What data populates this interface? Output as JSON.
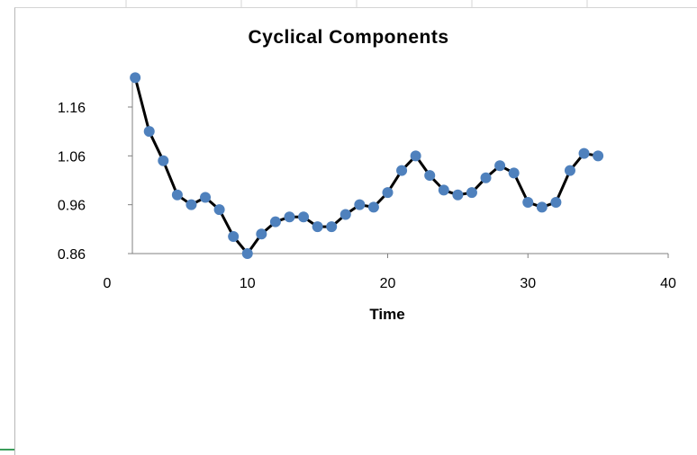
{
  "chart_data": {
    "type": "line",
    "title": "Cyclical Components",
    "xlabel": "Time",
    "ylabel": "",
    "xlim": [
      0,
      40
    ],
    "ylim": [
      0.86,
      1.2
    ],
    "x_ticks": [
      0,
      10,
      20,
      30,
      40
    ],
    "x_tick_labels": [
      "0",
      "10",
      "20",
      "30",
      "40"
    ],
    "y_ticks": [
      0.86,
      0.96,
      1.06,
      1.16
    ],
    "y_tick_labels": [
      "0.86",
      "0.96",
      "1.06",
      "1.16"
    ],
    "grid": false,
    "legend": "none",
    "series": [
      {
        "line_color": "#000000",
        "marker_color": "#4f81bd",
        "x": [
          2,
          3,
          4,
          5,
          6,
          7,
          8,
          9,
          10,
          11,
          12,
          13,
          14,
          15,
          16,
          17,
          18,
          19,
          20,
          21,
          22,
          23,
          24,
          25,
          26,
          27,
          28,
          29,
          30,
          31,
          32,
          33,
          34,
          35
        ],
        "y": [
          1.22,
          1.11,
          1.05,
          0.98,
          0.96,
          0.975,
          0.95,
          0.895,
          0.86,
          0.9,
          0.925,
          0.935,
          0.935,
          0.915,
          0.915,
          0.94,
          0.96,
          0.955,
          0.985,
          1.03,
          1.06,
          1.02,
          0.99,
          0.98,
          0.985,
          1.015,
          1.04,
          1.025,
          0.965,
          0.955,
          0.965,
          1.03,
          1.065,
          1.06
        ]
      }
    ]
  }
}
